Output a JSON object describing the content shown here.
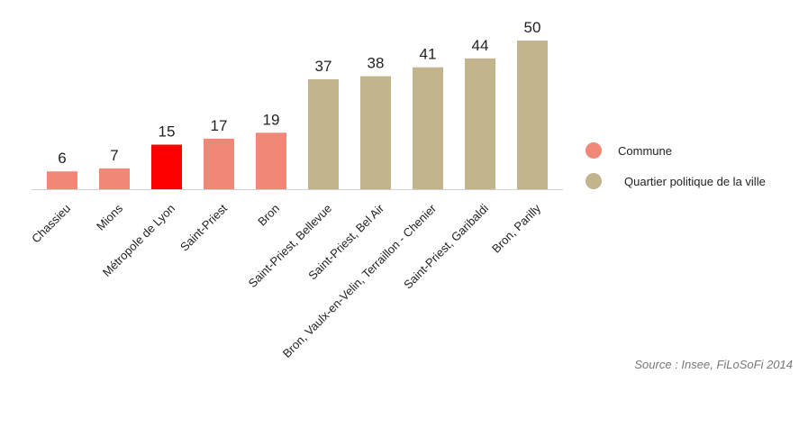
{
  "chart_data": {
    "type": "bar",
    "categories": [
      "Chassieu",
      "Mions",
      "Métropole de Lyon",
      "Saint-Priest",
      "Bron",
      "Saint-Priest, Bellevue",
      "Saint-Priest, Bel Air",
      "Bron, Vaulx-en-Velin, Terraillon - Chenier",
      "Saint-Priest, Garibaldi",
      "Bron, Parilly"
    ],
    "values": [
      6,
      7,
      15,
      17,
      19,
      37,
      38,
      41,
      44,
      50
    ],
    "bar_groups": [
      "commune",
      "commune",
      "metropole",
      "commune",
      "commune",
      "quartier",
      "quartier",
      "quartier",
      "quartier",
      "quartier"
    ],
    "colors": {
      "commune": "#f08878",
      "metropole": "#ff0000",
      "quartier": "#c2b58e",
      "axis": "#d0d0d0"
    },
    "ylim": [
      0,
      50
    ],
    "grid": false,
    "legend": {
      "placement": "right",
      "items": [
        {
          "label": "Commune",
          "color": "#f08878"
        },
        {
          "label": "Quartier politique de la ville",
          "color": "#c2b58e"
        }
      ]
    },
    "source": "Source : Insee, FiLoSoFi 2014"
  }
}
